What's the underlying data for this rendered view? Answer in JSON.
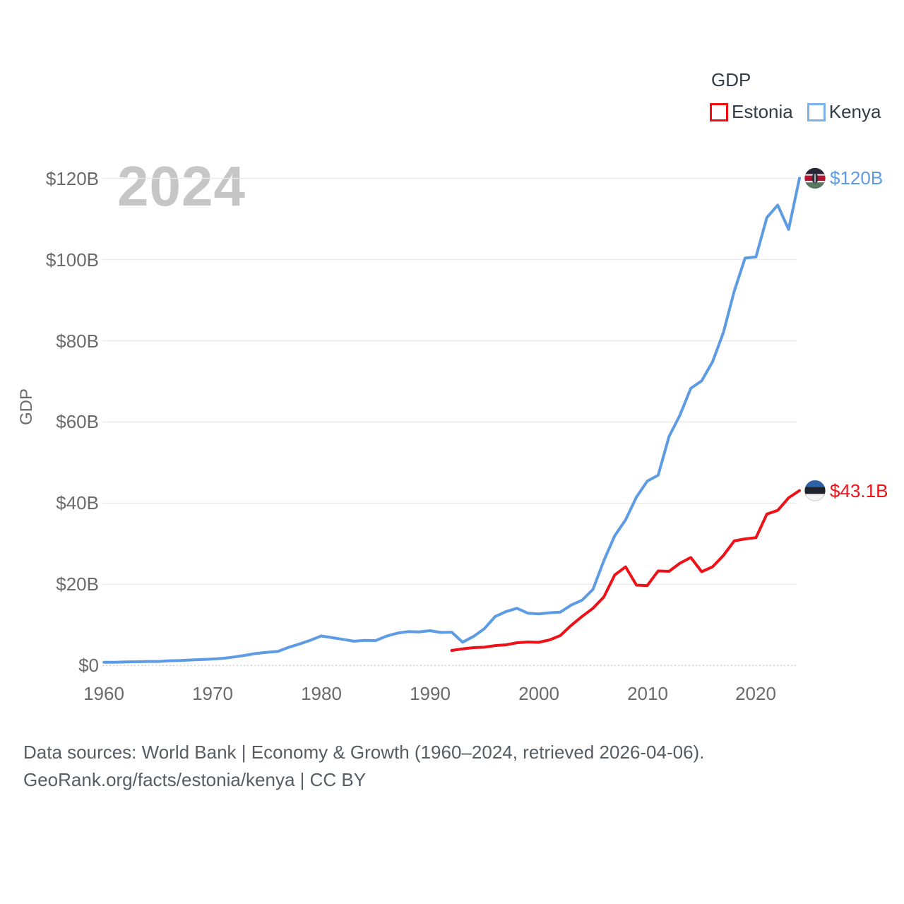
{
  "legend": {
    "title": "GDP",
    "items": [
      {
        "label": "Estonia",
        "swatch_color": "#f20d11"
      },
      {
        "label": "Kenya",
        "swatch_color": "#7db3ea"
      }
    ]
  },
  "watermark": "2024",
  "y_axis": {
    "label": "GDP",
    "ticks": [
      "$0",
      "$20B",
      "$40B",
      "$60B",
      "$80B",
      "$100B",
      "$120B"
    ],
    "tick_values": [
      0,
      20,
      40,
      60,
      80,
      100,
      120
    ]
  },
  "x_axis": {
    "ticks": [
      1960,
      1970,
      1980,
      1990,
      2000,
      2010,
      2020
    ]
  },
  "end_labels": [
    {
      "series": "Kenya",
      "text": "$120B",
      "value": 120.04,
      "color": "#5d9be4"
    },
    {
      "series": "Estonia",
      "text": "$43.1B",
      "value": 43.1,
      "color": "#ee1118"
    }
  ],
  "footer": {
    "line1": "Data sources: World Bank | Economy & Growth (1960–2024, retrieved 2026-04-06).",
    "line2": "GeoRank.org/facts/estonia/kenya | CC BY"
  },
  "chart_data": {
    "type": "line",
    "title": "GDP",
    "xlabel": "",
    "ylabel": "GDP",
    "unit": "billions of current USD",
    "x_range": [
      1960,
      2024
    ],
    "ylim": [
      0,
      120
    ],
    "grid": "horizontal",
    "legend_position": "top-right",
    "series": [
      {
        "name": "Kenya",
        "color": "#5d9be4",
        "start_year": 1960,
        "flag_stripes": [
          "#262636",
          "#f2f2f2",
          "#b51231",
          "#f2f2f2",
          "#57795f"
        ],
        "values": [
          0.79,
          0.79,
          0.87,
          0.93,
          1.0,
          1.0,
          1.16,
          1.23,
          1.35,
          1.46,
          1.6,
          1.78,
          2.11,
          2.5,
          2.97,
          3.26,
          3.47,
          4.49,
          5.3,
          6.23,
          7.27,
          6.85,
          6.43,
          5.98,
          6.19,
          6.14,
          7.24,
          7.97,
          8.36,
          8.28,
          8.57,
          8.15,
          8.21,
          5.75,
          7.15,
          9.05,
          12.05,
          13.3,
          14.09,
          12.9,
          12.71,
          12.99,
          13.15,
          14.9,
          16.1,
          18.74,
          25.83,
          31.96,
          35.9,
          41.5,
          45.41,
          46.87,
          56.4,
          61.67,
          68.28,
          70.12,
          74.82,
          82.04,
          92.2,
          100.38,
          100.67,
          110.35,
          113.42,
          107.44,
          120.04
        ]
      },
      {
        "name": "Estonia",
        "color": "#ee1118",
        "start_year": 1992,
        "flag_stripes": [
          "#2e62a8",
          "#20232d",
          "#f5f5f5"
        ],
        "values": [
          3.7,
          4.1,
          4.4,
          4.5,
          4.9,
          5.1,
          5.6,
          5.8,
          5.7,
          6.3,
          7.4,
          9.9,
          12.1,
          14.1,
          16.9,
          22.3,
          24.3,
          19.8,
          19.7,
          23.3,
          23.2,
          25.2,
          26.6,
          23.1,
          24.3,
          27.1,
          30.7,
          31.2,
          31.5,
          37.3,
          38.2,
          41.3,
          43.1
        ]
      }
    ]
  }
}
